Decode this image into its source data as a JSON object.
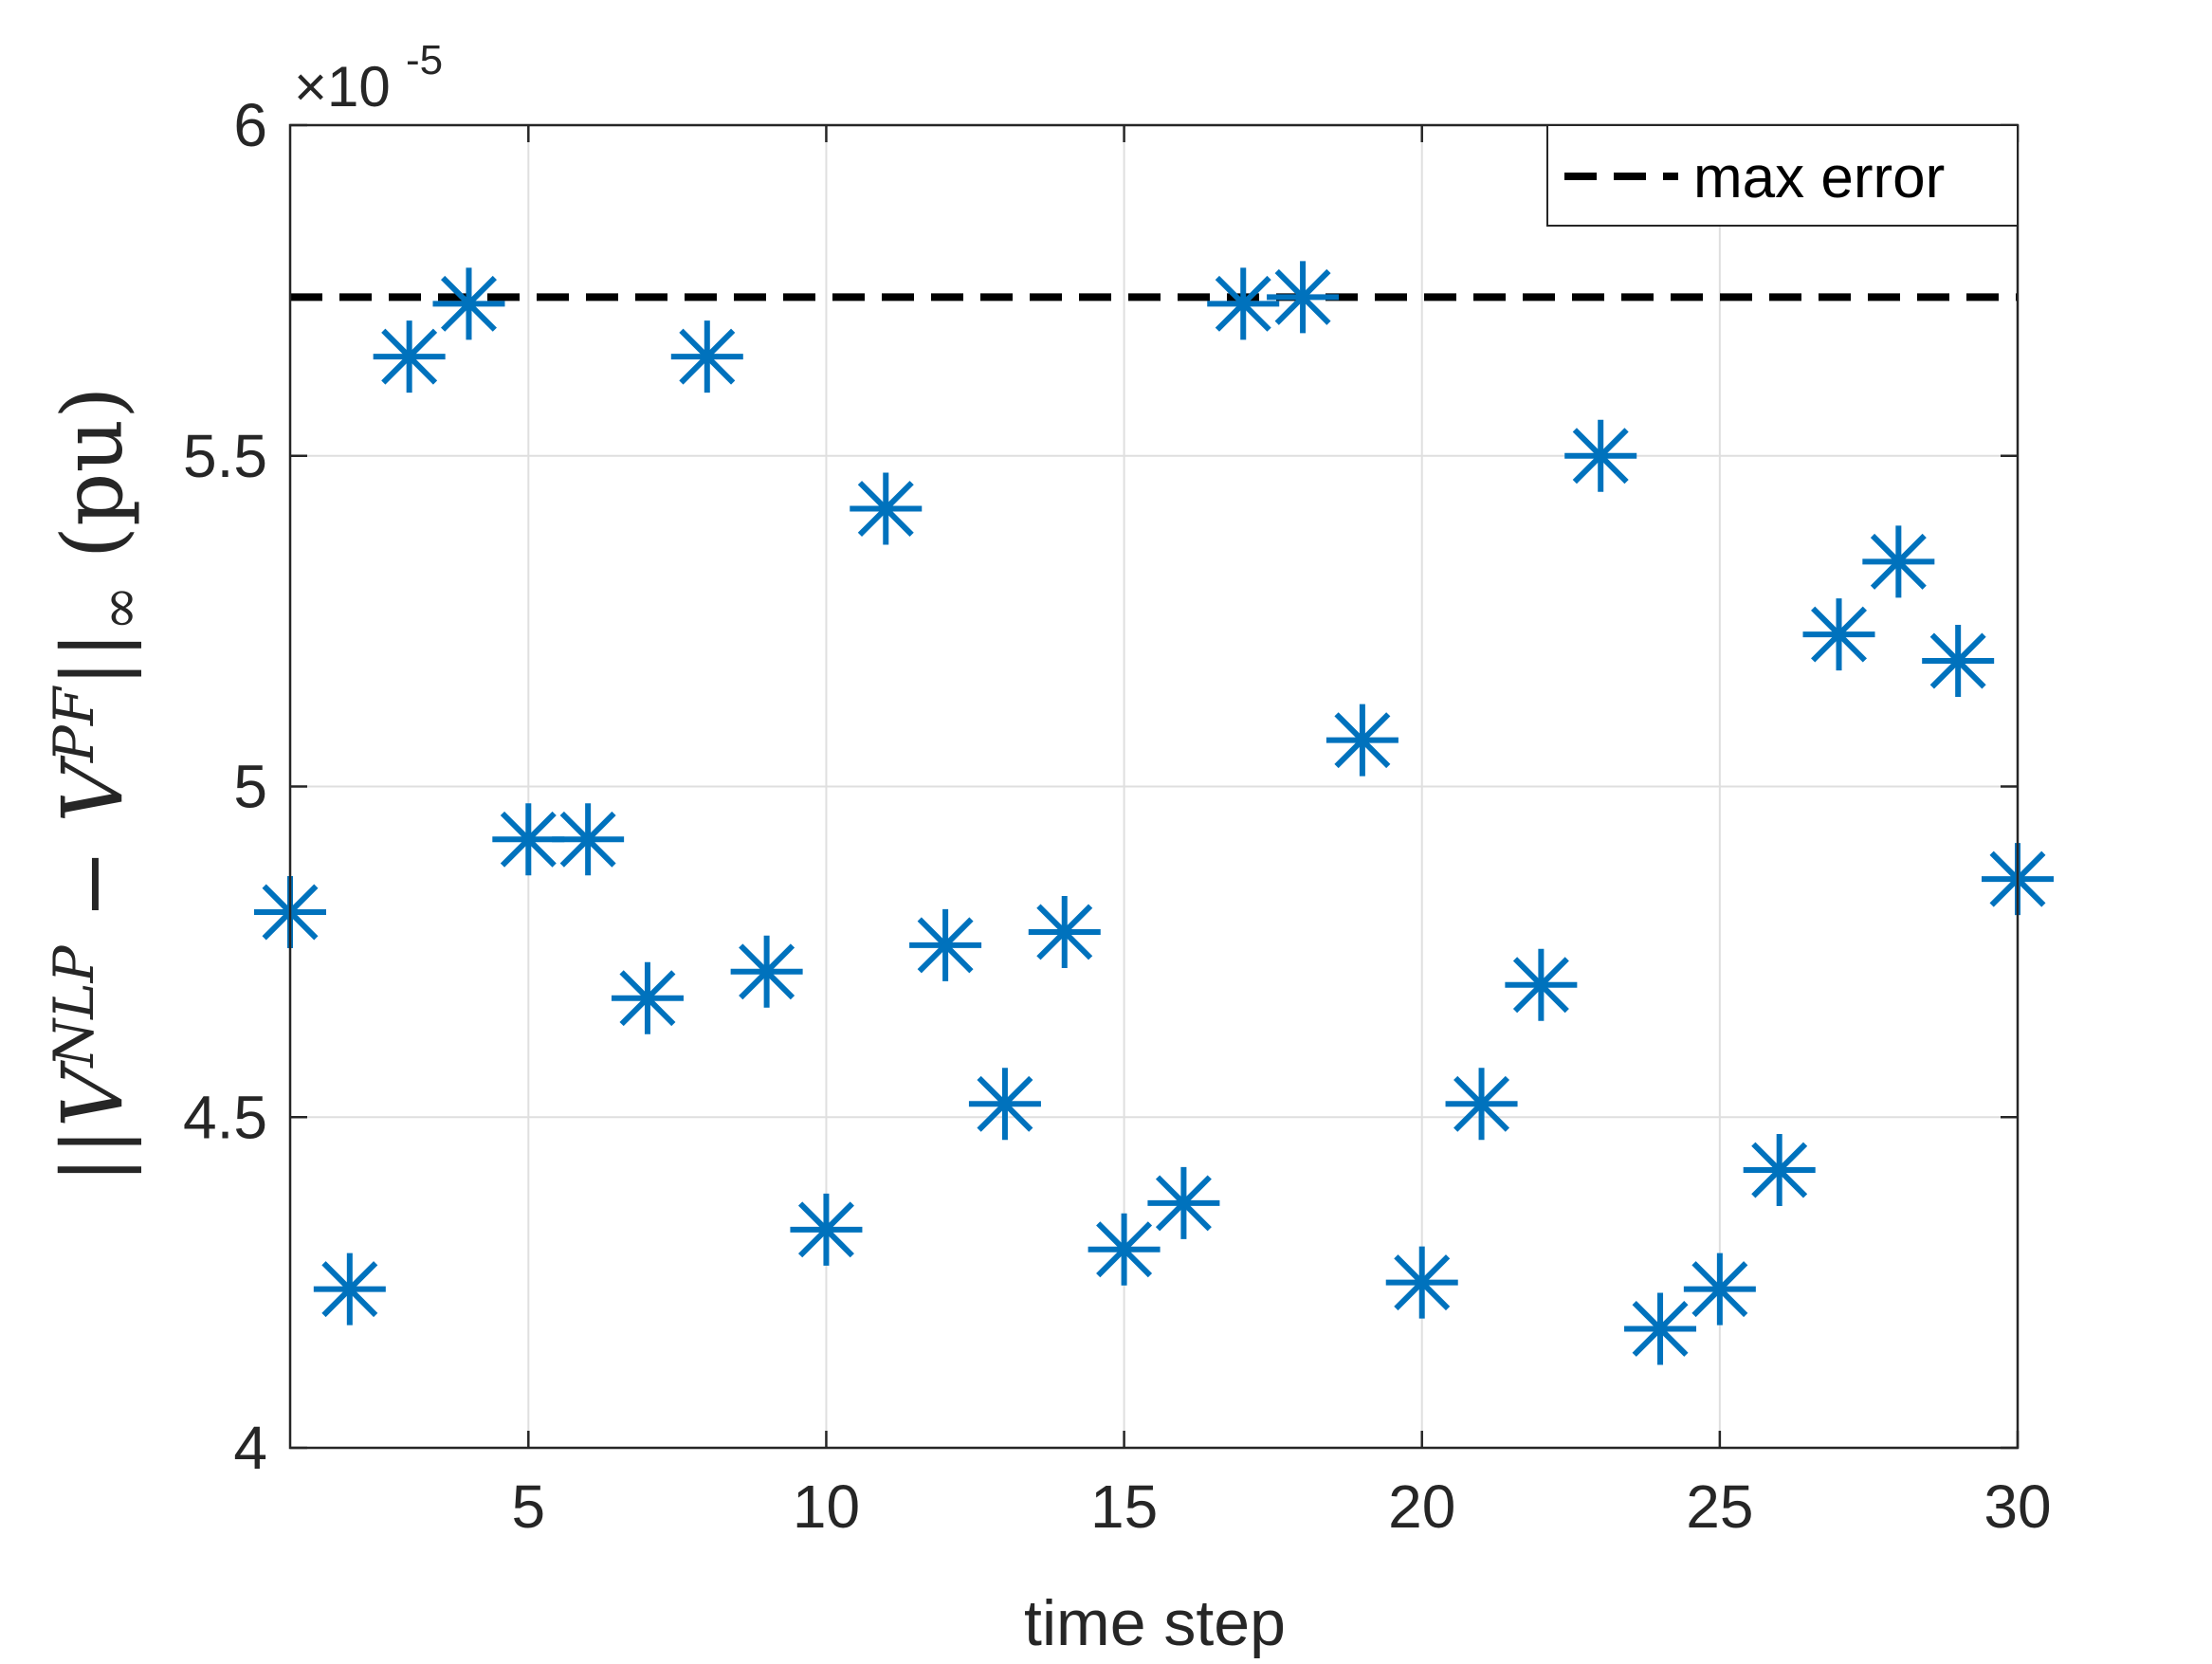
{
  "chart_data": {
    "type": "scatter",
    "title": "",
    "xlabel": "time step",
    "ylabel": "||V^{NLP} − V^{PF}||_∞ (pu)",
    "ylabel_parts": {
      "open": "||V",
      "sup_nlp": "NLP",
      "minus": " − V",
      "sup_pf": "PF",
      "close": "||",
      "sub_inf": "∞",
      "unit": " (pu)"
    },
    "xlim": [
      1,
      30
    ],
    "ylim": [
      4.0,
      6.0
    ],
    "y_scale_exponent": "×10",
    "y_scale_power": "-5",
    "xticks": [
      5,
      10,
      15,
      20,
      25,
      30
    ],
    "xtick_labels": [
      "5",
      "10",
      "15",
      "20",
      "25",
      "30"
    ],
    "yticks": [
      4.0,
      4.5,
      5.0,
      5.5,
      6.0
    ],
    "ytick_labels": [
      "4",
      "4.5",
      "5",
      "5.5",
      "6"
    ],
    "grid": true,
    "legend_position": "top-right",
    "series": [
      {
        "name": "",
        "marker": "asterisk",
        "color": "#0072BD",
        "x": [
          1,
          2,
          3,
          4,
          5,
          6,
          7,
          8,
          9,
          10,
          11,
          12,
          13,
          14,
          15,
          16,
          17,
          18,
          19,
          20,
          21,
          22,
          23,
          24,
          25,
          26,
          27,
          28,
          29,
          30
        ],
        "y": [
          4.81,
          4.24,
          5.65,
          5.73,
          4.92,
          4.92,
          4.68,
          5.65,
          4.72,
          4.33,
          5.42,
          4.76,
          4.52,
          4.78,
          4.3,
          4.37,
          5.73,
          5.74,
          5.07,
          4.25,
          4.52,
          4.7,
          5.5,
          4.18,
          4.24,
          4.42,
          5.23,
          5.34,
          5.19,
          4.86
        ]
      }
    ],
    "reference_lines": [
      {
        "name": "max error",
        "y": 5.74,
        "style": "dashed",
        "color": "#000000"
      }
    ]
  }
}
